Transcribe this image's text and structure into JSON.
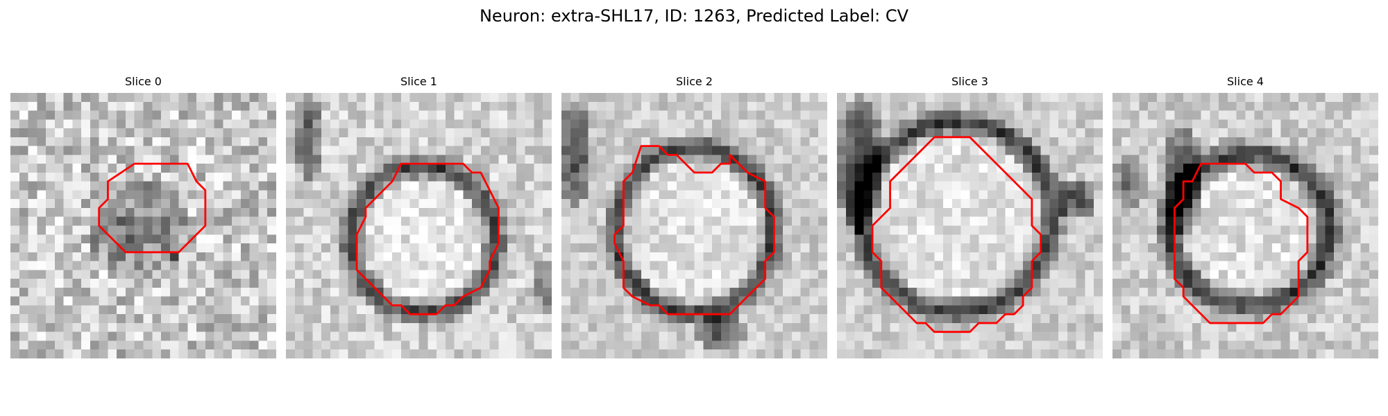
{
  "figure": {
    "title": "Neuron: extra-SHL17, ID: 1263, Predicted Label: CV"
  },
  "panels": [
    {
      "title": "Slice 0",
      "seed": 11,
      "blobs": [
        {
          "cx": 14.5,
          "cy": 15.5,
          "rx": 5.8,
          "ry": 5.8,
          "dark": 0.32,
          "inner": 0.0
        },
        {
          "cx": 18.5,
          "cy": 18.5,
          "rx": 0.8,
          "ry": 0.8,
          "dark": 0.6,
          "inner": 0.0
        }
      ],
      "base": 0.78,
      "noise": 0.22,
      "contour": [
        [
          14,
          8
        ],
        [
          20,
          8
        ],
        [
          21,
          10
        ],
        [
          22,
          11
        ],
        [
          22,
          15
        ],
        [
          20,
          17
        ],
        [
          19,
          18
        ],
        [
          13,
          18
        ],
        [
          11,
          16
        ],
        [
          10,
          15
        ],
        [
          10,
          13
        ],
        [
          11,
          12
        ],
        [
          11,
          10
        ]
      ]
    },
    {
      "title": "Slice 1",
      "seed": 23,
      "blobs": [
        {
          "cx": 15.5,
          "cy": 16.5,
          "rx": 9.5,
          "ry": 9.5,
          "dark": 0.55,
          "inner": 7.0
        },
        {
          "cx": 2.5,
          "cy": 5.0,
          "rx": 1.6,
          "ry": 5.0,
          "dark": 0.5,
          "inner": 0.0
        },
        {
          "cx": 29.0,
          "cy": 22.0,
          "rx": 1.5,
          "ry": 3.5,
          "dark": 0.35,
          "inner": 0.0
        }
      ],
      "base": 0.82,
      "noise": 0.14,
      "contour": [
        [
          13,
          8
        ],
        [
          20,
          8
        ],
        [
          21,
          9
        ],
        [
          22,
          9
        ],
        [
          23,
          11
        ],
        [
          24,
          13
        ],
        [
          24,
          17
        ],
        [
          23,
          19
        ],
        [
          23,
          20
        ],
        [
          22,
          22
        ],
        [
          20,
          23
        ],
        [
          19,
          24
        ],
        [
          18,
          24
        ],
        [
          17,
          25
        ],
        [
          14,
          25
        ],
        [
          13,
          24
        ],
        [
          12,
          24
        ],
        [
          11,
          23
        ],
        [
          10,
          22
        ],
        [
          8,
          20
        ],
        [
          8,
          19
        ],
        [
          8,
          17
        ],
        [
          8,
          16
        ],
        [
          9,
          14
        ],
        [
          9,
          13
        ],
        [
          11,
          11
        ],
        [
          12,
          10
        ]
      ]
    },
    {
      "title": "Slice 2",
      "seed": 37,
      "blobs": [
        {
          "cx": 15.0,
          "cy": 15.5,
          "rx": 10.0,
          "ry": 10.5,
          "dark": 0.6,
          "inner": 7.8
        },
        {
          "cx": 1.5,
          "cy": 7.0,
          "rx": 2.0,
          "ry": 6.0,
          "dark": 0.55,
          "inner": 0.0
        },
        {
          "cx": 18.0,
          "cy": 27.0,
          "rx": 3.0,
          "ry": 2.0,
          "dark": 0.55,
          "inner": 0.0
        }
      ],
      "base": 0.8,
      "noise": 0.12,
      "contour": [
        [
          9,
          6
        ],
        [
          11,
          6
        ],
        [
          12,
          7
        ],
        [
          13,
          7
        ],
        [
          15,
          9
        ],
        [
          17,
          9
        ],
        [
          18,
          8
        ],
        [
          19,
          8
        ],
        [
          19,
          7
        ],
        [
          21,
          9
        ],
        [
          23,
          10
        ],
        [
          23,
          13
        ],
        [
          24,
          14
        ],
        [
          24,
          18
        ],
        [
          23,
          19
        ],
        [
          23,
          21
        ],
        [
          22,
          22
        ],
        [
          21,
          23
        ],
        [
          20,
          24
        ],
        [
          19,
          25
        ],
        [
          12,
          25
        ],
        [
          11,
          24
        ],
        [
          10,
          24
        ],
        [
          8,
          23
        ],
        [
          7,
          22
        ],
        [
          7,
          19
        ],
        [
          6,
          17
        ],
        [
          6,
          16
        ],
        [
          7,
          15
        ],
        [
          7,
          10
        ],
        [
          8,
          9
        ]
      ]
    },
    {
      "title": "Slice 3",
      "seed": 51,
      "blobs": [
        {
          "cx": 13.5,
          "cy": 14.0,
          "rx": 12.0,
          "ry": 12.0,
          "dark": 0.62,
          "inner": 9.5
        },
        {
          "cx": 2.5,
          "cy": 8.0,
          "rx": 2.5,
          "ry": 8.0,
          "dark": 0.6,
          "inner": 0.0
        },
        {
          "cx": 27.0,
          "cy": 12.0,
          "rx": 2.5,
          "ry": 2.5,
          "dark": 0.55,
          "inner": 0.0
        }
      ],
      "base": 0.8,
      "noise": 0.12,
      "contour": [
        [
          11,
          5
        ],
        [
          15,
          5
        ],
        [
          22,
          12
        ],
        [
          22,
          15
        ],
        [
          23,
          16
        ],
        [
          23,
          18
        ],
        [
          22,
          19
        ],
        [
          22,
          22
        ],
        [
          21,
          23
        ],
        [
          21,
          24
        ],
        [
          20,
          25
        ],
        [
          19,
          25
        ],
        [
          18,
          26
        ],
        [
          16,
          26
        ],
        [
          15,
          27
        ],
        [
          11,
          27
        ],
        [
          10,
          26
        ],
        [
          9,
          26
        ],
        [
          6,
          23
        ],
        [
          5,
          22
        ],
        [
          5,
          19
        ],
        [
          4,
          18
        ],
        [
          4,
          15
        ],
        [
          6,
          13
        ],
        [
          6,
          10
        ]
      ]
    },
    {
      "title": "Slice 4",
      "seed": 67,
      "blobs": [
        {
          "cx": 15.5,
          "cy": 15.5,
          "rx": 10.5,
          "ry": 10.0,
          "dark": 0.6,
          "inner": 7.5
        },
        {
          "cx": 8.0,
          "cy": 10.0,
          "rx": 2.5,
          "ry": 6.0,
          "dark": 0.6,
          "inner": 0.0
        },
        {
          "cx": 2.0,
          "cy": 10.0,
          "rx": 2.0,
          "ry": 3.0,
          "dark": 0.4,
          "inner": 0.0
        }
      ],
      "base": 0.8,
      "noise": 0.13,
      "contour": [
        [
          10,
          8
        ],
        [
          15,
          8
        ],
        [
          16,
          9
        ],
        [
          18,
          9
        ],
        [
          19,
          10
        ],
        [
          19,
          12
        ],
        [
          21,
          13
        ],
        [
          22,
          14
        ],
        [
          22,
          18
        ],
        [
          21,
          19
        ],
        [
          21,
          23
        ],
        [
          20,
          24
        ],
        [
          19,
          25
        ],
        [
          18,
          25
        ],
        [
          17,
          26
        ],
        [
          11,
          26
        ],
        [
          9,
          24
        ],
        [
          8,
          23
        ],
        [
          8,
          22
        ],
        [
          7,
          21
        ],
        [
          7,
          13
        ],
        [
          8,
          12
        ],
        [
          8,
          10
        ],
        [
          9,
          10
        ]
      ]
    }
  ],
  "style": {
    "contour_color": "#ff0000",
    "grid_size": 30
  }
}
